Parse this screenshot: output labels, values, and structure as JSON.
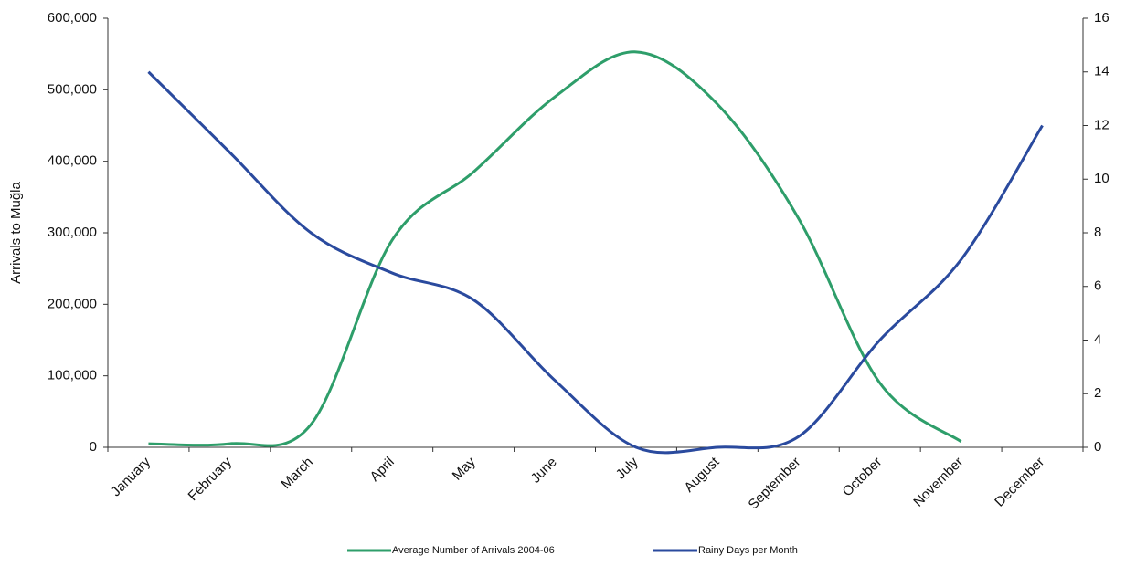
{
  "chart_data": {
    "type": "line",
    "y_label": "Arrivals to Muğla",
    "categories": [
      "January",
      "February",
      "March",
      "April",
      "May",
      "June",
      "July",
      "August",
      "September",
      "October",
      "November",
      "December"
    ],
    "series": [
      {
        "name": "Average Number of Arrivals 2004-06",
        "color": "#2e9e6a",
        "values": [
          5000,
          5000,
          32000,
          290000,
          385000,
          490000,
          553000,
          480000,
          320000,
          90000,
          8000,
          null
        ]
      },
      {
        "name": "Rainy Days per Month",
        "axis": "y2",
        "color": "#2a4a9e",
        "values": [
          14,
          11,
          8,
          6.5,
          5.5,
          2.5,
          0,
          0,
          0.4,
          4,
          7,
          12
        ]
      }
    ],
    "ylim": [
      0,
      600000
    ],
    "yticks": [
      {
        "value": 0,
        "label": "0"
      },
      {
        "value": 100000,
        "label": "100,000"
      },
      {
        "value": 200000,
        "label": "200,000"
      },
      {
        "value": 300000,
        "label": "300,000"
      },
      {
        "value": 400000,
        "label": "400,000"
      },
      {
        "value": 500000,
        "label": "500,000"
      },
      {
        "value": 600000,
        "label": "600,000"
      }
    ],
    "y2lim": [
      0,
      16
    ],
    "y2ticks": [
      0,
      2,
      4,
      6,
      8,
      10,
      12,
      14,
      16
    ],
    "legend": "bottom"
  }
}
